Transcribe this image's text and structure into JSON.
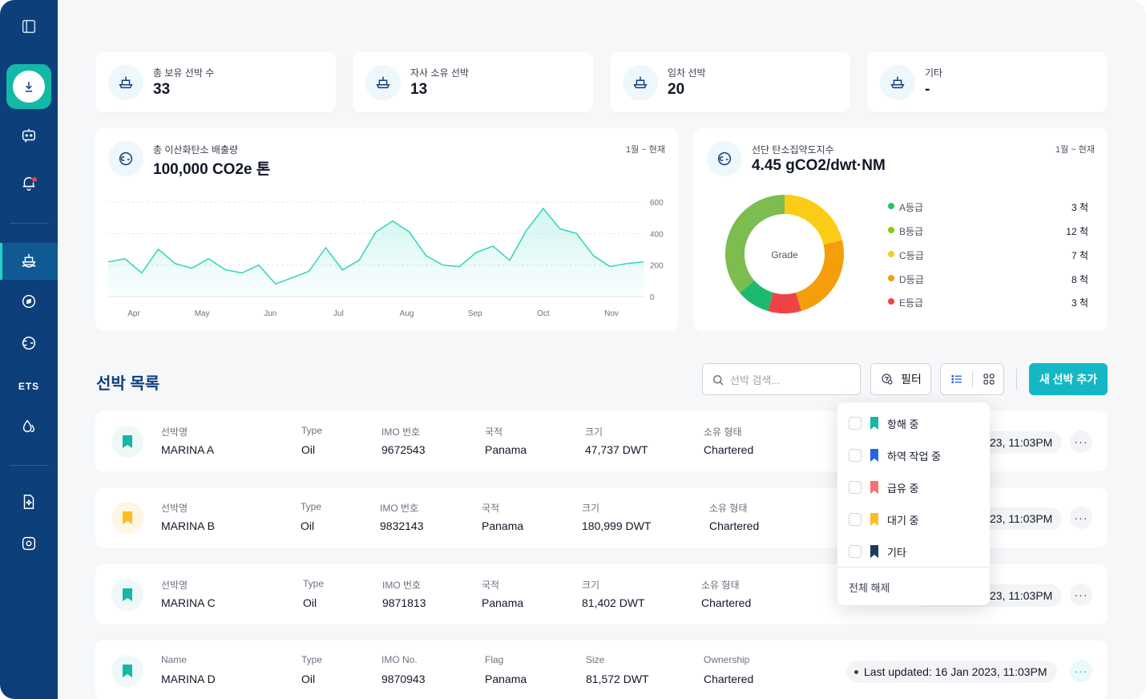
{
  "stats": [
    {
      "label": "총 보유 선박 수",
      "value": "33"
    },
    {
      "label": "자사 소유 선박",
      "value": "13"
    },
    {
      "label": "임차 선박",
      "value": "20"
    },
    {
      "label": "기타",
      "value": "-"
    }
  ],
  "sidebar": {
    "ets_label": "ETS"
  },
  "emissions": {
    "label": "총 이산화탄소 배출량",
    "value": "100,000 CO2e 톤",
    "range": "1월 ~ 현재",
    "chart_data": {
      "type": "area",
      "x_tick_labels": [
        "Apr",
        "May",
        "Jun",
        "Jul",
        "Aug",
        "Sep",
        "Oct",
        "Nov"
      ],
      "y_ticks": [
        "600",
        "400",
        "200",
        "0"
      ],
      "ylim": [
        0,
        600
      ],
      "values": [
        220,
        240,
        150,
        300,
        210,
        180,
        240,
        170,
        150,
        200,
        80,
        120,
        160,
        310,
        170,
        230,
        410,
        480,
        410,
        260,
        200,
        190,
        280,
        320,
        230,
        420,
        560,
        430,
        400,
        260,
        190,
        210,
        220
      ],
      "grid": true
    }
  },
  "intensity": {
    "label": "선단 탄소집약도지수",
    "value": "4.45 gCO2/dwt·NM",
    "range": "1월 ~ 현재",
    "donut_center": "Grade",
    "chart_data": {
      "type": "pie",
      "categories": [
        "A등급",
        "B등급",
        "C등급",
        "D등급",
        "E등급"
      ],
      "values": [
        3,
        12,
        7,
        8,
        3
      ],
      "colors": [
        "#1db96f",
        "#7dbd4f",
        "#facc15",
        "#f59e0b",
        "#ef4444"
      ]
    },
    "legend": [
      {
        "name": "A등급",
        "count": "3 척",
        "color": "#22c55e"
      },
      {
        "name": "B등급",
        "count": "12 척",
        "color": "#84cc16"
      },
      {
        "name": "C등급",
        "count": "7 척",
        "color": "#facc15"
      },
      {
        "name": "D등급",
        "count": "8 척",
        "color": "#f59e0b"
      },
      {
        "name": "E등급",
        "count": "3 척",
        "color": "#ef4444"
      }
    ]
  },
  "list": {
    "title": "선박 목록",
    "search_placeholder": "선박 검색...",
    "filter_label": "필터",
    "add_label": "새 선박 추가"
  },
  "ships": [
    {
      "labels": [
        "선박명",
        "Type",
        "IMO 번호",
        "국적",
        "크기",
        "소유 형태"
      ],
      "name": "MARINA A",
      "type": "Oil",
      "imo": "9672543",
      "flag": "Panama",
      "size": "47,737 DWT",
      "ownership": "Chartered",
      "updated": "23, 11:03PM",
      "color": "#14b8a6"
    },
    {
      "labels": [
        "선박명",
        "Type",
        "IMO 번호",
        "국적",
        "크기",
        "소유 형태"
      ],
      "name": "MARINA B",
      "type": "Oil",
      "imo": "9832143",
      "flag": "Panama",
      "size": "180,999 DWT",
      "ownership": "Chartered",
      "updated": "23, 11:03PM",
      "color": "#fbbf24"
    },
    {
      "labels": [
        "선박명",
        "Type",
        "IMO 번호",
        "국적",
        "크기",
        "소유 형태"
      ],
      "name": "MARINA C",
      "type": "Oil",
      "imo": "9871813",
      "flag": "Panama",
      "size": "81,402 DWT",
      "ownership": "Chartered",
      "updated": "23, 11:03PM",
      "color": "#14b8a6"
    },
    {
      "labels": [
        "Name",
        "Type",
        "IMO No.",
        "Flag",
        "Size",
        "Ownership"
      ],
      "name": "MARINA D",
      "type": "Oil",
      "imo": "9870943",
      "flag": "Panama",
      "size": "81,572 DWT",
      "ownership": "Chartered",
      "updated": "Last updated:  16 Jan 2023, 11:03PM",
      "color": "#14b8a6"
    }
  ],
  "filter_menu": {
    "items": [
      {
        "label": "항해 중",
        "color": "#14b8a6"
      },
      {
        "label": "하역 작업 중",
        "color": "#2563eb"
      },
      {
        "label": "급유 중",
        "color": "#f87171"
      },
      {
        "label": "대기 중",
        "color": "#fbbf24"
      },
      {
        "label": "기타",
        "color": "#1e3a5f"
      }
    ],
    "clear_label": "전체 해제"
  }
}
